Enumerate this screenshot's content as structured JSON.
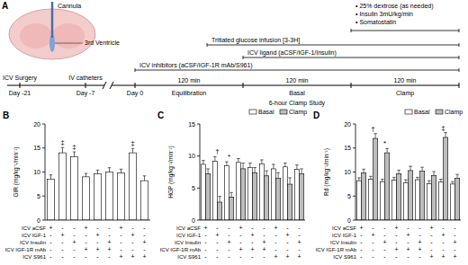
{
  "chart_data": [
    {
      "type": "bar",
      "title": "B",
      "y_label": "GIR (mg/kg⁻¹/min⁻¹)",
      "categories": [
        null,
        null,
        null,
        null,
        null,
        null,
        null,
        null,
        null
      ],
      "values": [
        8.5,
        14,
        13.2,
        9,
        9.6,
        10,
        9.8,
        14,
        8.2
      ],
      "errors": [
        0.9,
        1.1,
        1,
        0.7,
        0.8,
        0.9,
        0.8,
        0.9,
        1
      ],
      "color": "#ffffff",
      "ylim": [
        0,
        20
      ],
      "yticks": [
        0,
        5,
        10,
        15,
        20
      ],
      "grid": false,
      "annotations": [
        {
          "index": 1,
          "text": "‡"
        },
        {
          "index": 2,
          "text": "‡"
        },
        {
          "index": 7,
          "text": "‡"
        }
      ],
      "conditions": [
        {
          "label": "ICV aCSF",
          "marks": [
            "+",
            "-",
            "-",
            "+",
            "-",
            "-",
            "+",
            "-",
            "-"
          ]
        },
        {
          "label": "ICV IGF-1",
          "marks": [
            "-",
            "+",
            "-",
            "-",
            "+",
            "-",
            "-",
            "+",
            "-"
          ]
        },
        {
          "label": "ICV Insulin",
          "marks": [
            "-",
            "-",
            "+",
            "-",
            "-",
            "+",
            "-",
            "-",
            "+"
          ]
        },
        {
          "label": "ICV IGF-1R mAb",
          "marks": [
            "-",
            "-",
            "-",
            "+",
            "+",
            "+",
            "-",
            "-",
            "-"
          ]
        },
        {
          "label": "ICV S961",
          "marks": [
            "-",
            "-",
            "-",
            "-",
            "-",
            "-",
            "+",
            "+",
            "+"
          ]
        }
      ]
    },
    {
      "type": "bar",
      "title": "C",
      "y_label": "HGP (mg/kg⁻¹/min⁻¹)",
      "categories": [
        null,
        null,
        null,
        null,
        null,
        null,
        null,
        null,
        null
      ],
      "series": [
        {
          "name": "Basal",
          "color": "#ffffff",
          "values": [
            8.7,
            9.2,
            8.5,
            9,
            8.2,
            8.8,
            8,
            8.3,
            7.9
          ],
          "errors": [
            0.6,
            0.7,
            0.6,
            0.6,
            0.7,
            0.6,
            0.7,
            0.6,
            0.7
          ]
        },
        {
          "name": "Clamp",
          "color": "#bdbdbd",
          "values": [
            7.2,
            2.8,
            3.6,
            8,
            7.4,
            6.9,
            6.5,
            5.6,
            7.2
          ],
          "errors": [
            0.8,
            0.9,
            0.7,
            0.9,
            0.8,
            0.8,
            0.9,
            1,
            0.8
          ]
        }
      ],
      "ylim": [
        0,
        15
      ],
      "yticks": [
        0,
        5,
        10,
        15
      ],
      "grid": false,
      "legend": "top-right",
      "annotations": [
        {
          "index": 1,
          "text": "†"
        },
        {
          "index": 2,
          "text": "*"
        }
      ],
      "conditions": [
        {
          "label": "ICV aCSF",
          "marks": [
            "+",
            "-",
            "-",
            "+",
            "-",
            "-",
            "+",
            "-",
            "-"
          ]
        },
        {
          "label": "ICV IGF-1",
          "marks": [
            "-",
            "+",
            "-",
            "-",
            "+",
            "-",
            "-",
            "+",
            "-"
          ]
        },
        {
          "label": "ICV Insulin",
          "marks": [
            "-",
            "-",
            "+",
            "-",
            "-",
            "+",
            "-",
            "-",
            "+"
          ]
        },
        {
          "label": "ICV IGF-1R mAb",
          "marks": [
            "-",
            "-",
            "-",
            "+",
            "+",
            "+",
            "-",
            "-",
            "-"
          ]
        },
        {
          "label": "ICV S961",
          "marks": [
            "-",
            "-",
            "-",
            "-",
            "-",
            "-",
            "+",
            "+",
            "+"
          ]
        }
      ]
    },
    {
      "type": "bar",
      "title": "D",
      "y_label": "Rd (mg/kg⁻¹/min⁻¹)",
      "categories": [
        null,
        null,
        null,
        null,
        null,
        null,
        null,
        null,
        null
      ],
      "series": [
        {
          "name": "Basal",
          "color": "#ffffff",
          "values": [
            8.2,
            8.5,
            8,
            8.3,
            7.8,
            8.4,
            7.6,
            7.9,
            7.5
          ],
          "errors": [
            0.6,
            0.6,
            0.5,
            0.6,
            0.6,
            0.5,
            0.6,
            0.6,
            0.5
          ]
        },
        {
          "name": "Clamp",
          "color": "#bdbdbd",
          "values": [
            9.8,
            17,
            14,
            9.6,
            10.3,
            10.2,
            9.3,
            17.2,
            8.7
          ],
          "errors": [
            0.8,
            1,
            0.9,
            0.8,
            0.9,
            0.8,
            0.8,
            1,
            0.8
          ]
        }
      ],
      "ylim": [
        0,
        20
      ],
      "yticks": [
        0,
        5,
        10,
        15,
        20
      ],
      "grid": false,
      "legend": "top-right",
      "annotations": [
        {
          "index": 1,
          "text": "†"
        },
        {
          "index": 2,
          "text": "*"
        },
        {
          "index": 7,
          "text": "‡"
        }
      ],
      "conditions": [
        {
          "label": "ICV aCSF",
          "marks": [
            "+",
            "-",
            "-",
            "+",
            "-",
            "-",
            "+",
            "-",
            "-"
          ]
        },
        {
          "label": "ICV IGF-1",
          "marks": [
            "-",
            "+",
            "-",
            "-",
            "+",
            "-",
            "-",
            "+",
            "-"
          ]
        },
        {
          "label": "ICV Insulin",
          "marks": [
            "-",
            "-",
            "+",
            "-",
            "-",
            "+",
            "-",
            "-",
            "+"
          ]
        },
        {
          "label": "ICV IGF-1R mAb",
          "marks": [
            "-",
            "-",
            "-",
            "+",
            "+",
            "+",
            "-",
            "-",
            "-"
          ]
        },
        {
          "label": "ICV S961",
          "marks": [
            "-",
            "-",
            "-",
            "-",
            "-",
            "-",
            "+",
            "+",
            "+"
          ]
        }
      ]
    }
  ],
  "diagram": {
    "label": "A",
    "cannula": "Cannula",
    "ventricle": "3rd Ventricle",
    "infusions": [
      "• 25% dextrose (as needed)",
      "• Insulin 3mU/kg/min",
      "• Somatostatin"
    ],
    "tritiated": "Tritiated glucose infusion [3-3H]",
    "ligand": "ICV ligand (aCSF/IGF-1/Insulin)",
    "inhibitors": "ICV inhibitors (aCSF/IGF-1R mAb/S961)",
    "timeline": [
      {
        "event": "ICV Surgery",
        "day": "Day -21"
      },
      {
        "event": "IV catheters",
        "day": "Day -7"
      },
      {
        "day": "Day 0"
      }
    ],
    "phases": [
      {
        "duration": "120 min",
        "name": "Equilibration"
      },
      {
        "duration": "120 min",
        "name": "Basal"
      },
      {
        "duration": "120 min",
        "name": "Clamp"
      }
    ],
    "study": "6-hour Clamp Study"
  }
}
